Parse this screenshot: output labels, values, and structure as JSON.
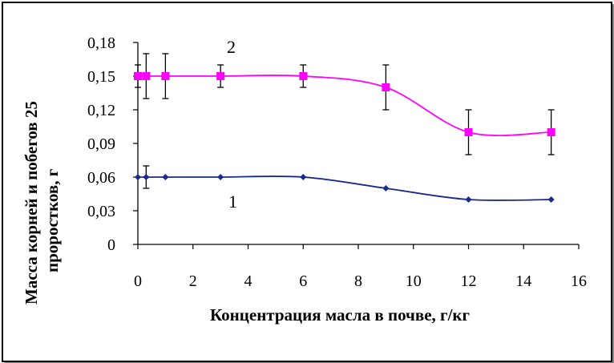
{
  "chart_data": {
    "type": "line",
    "xlabel": "Концентрация масла в почве,  г/кг",
    "ylabel_lines": [
      "Масса корней и побегов 25",
      "проростков,  г"
    ],
    "xlim": [
      0,
      16
    ],
    "ylim": [
      0,
      0.18
    ],
    "x_ticks": [
      "0",
      "2",
      "4",
      "6",
      "8",
      "10",
      "12",
      "14",
      "16"
    ],
    "y_ticks": [
      "0",
      "0,03",
      "0,06",
      "0,09",
      "0,12",
      "0,15",
      "0,18"
    ],
    "grid": false,
    "legend": "none",
    "series": [
      {
        "name": "1",
        "color": "#1a2a8c",
        "marker": "diamond",
        "x": [
          0,
          0.3,
          1,
          3,
          6,
          9,
          12,
          15
        ],
        "y": [
          0.06,
          0.06,
          0.06,
          0.06,
          0.06,
          0.05,
          0.04,
          0.04
        ],
        "error": [
          0,
          0.01,
          0,
          0,
          0,
          0,
          0,
          0
        ]
      },
      {
        "name": "2",
        "color": "#ff00ff",
        "marker": "square",
        "x": [
          0,
          0.3,
          1,
          3,
          6,
          9,
          12,
          15
        ],
        "y": [
          0.15,
          0.15,
          0.15,
          0.15,
          0.15,
          0.14,
          0.1,
          0.1
        ],
        "error": [
          0.01,
          0.02,
          0.02,
          0.01,
          0.01,
          0.02,
          0.02,
          0.02
        ]
      }
    ]
  }
}
